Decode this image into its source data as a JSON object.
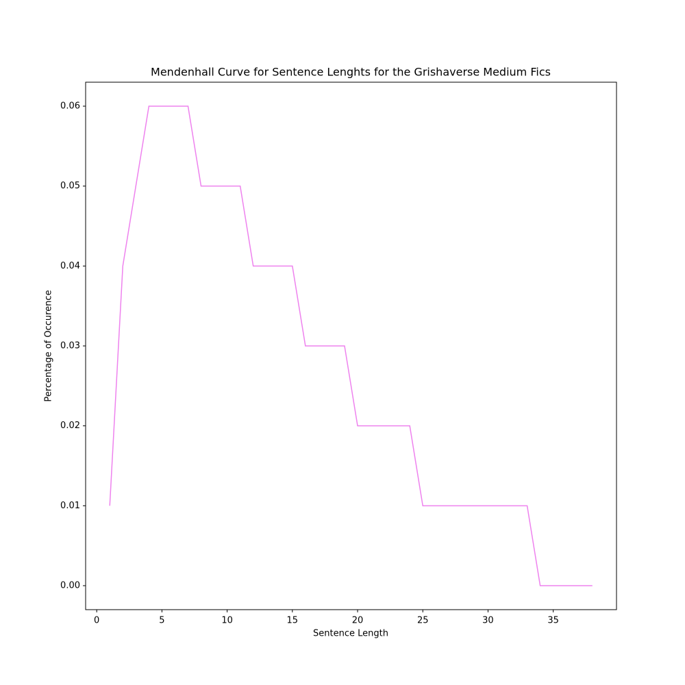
{
  "chart_data": {
    "type": "line",
    "title": "Mendenhall Curve for Sentence Lenghts for the Grishaverse Medium Fics",
    "x_label": "Sentence Length",
    "y_label": "Percentage of Occurence",
    "x": [
      1,
      2,
      3,
      4,
      5,
      6,
      7,
      8,
      9,
      10,
      11,
      12,
      13,
      14,
      15,
      16,
      17,
      18,
      19,
      20,
      21,
      22,
      23,
      24,
      25,
      26,
      27,
      28,
      29,
      30,
      31,
      32,
      33,
      34,
      35,
      36,
      37,
      38
    ],
    "series": [
      {
        "color": "violet",
        "values": [
          0.01,
          0.04,
          0.05,
          0.06,
          0.06,
          0.06,
          0.06,
          0.05,
          0.05,
          0.05,
          0.05,
          0.04,
          0.04,
          0.04,
          0.04,
          0.03,
          0.03,
          0.03,
          0.03,
          0.02,
          0.02,
          0.02,
          0.02,
          0.02,
          0.01,
          0.01,
          0.01,
          0.01,
          0.01,
          0.01,
          0.01,
          0.01,
          0.01,
          0,
          0,
          0,
          0,
          0
        ]
      }
    ],
    "xlim": [
      -0.85,
      39.85
    ],
    "ylim": [
      -0.003,
      0.063
    ],
    "xticks": [
      0,
      5,
      10,
      15,
      20,
      25,
      30,
      35
    ],
    "yticks": [
      {
        "value": 0,
        "label": "0.00"
      },
      0.01,
      0.02,
      0.03,
      0.04,
      0.05,
      0.06
    ]
  }
}
